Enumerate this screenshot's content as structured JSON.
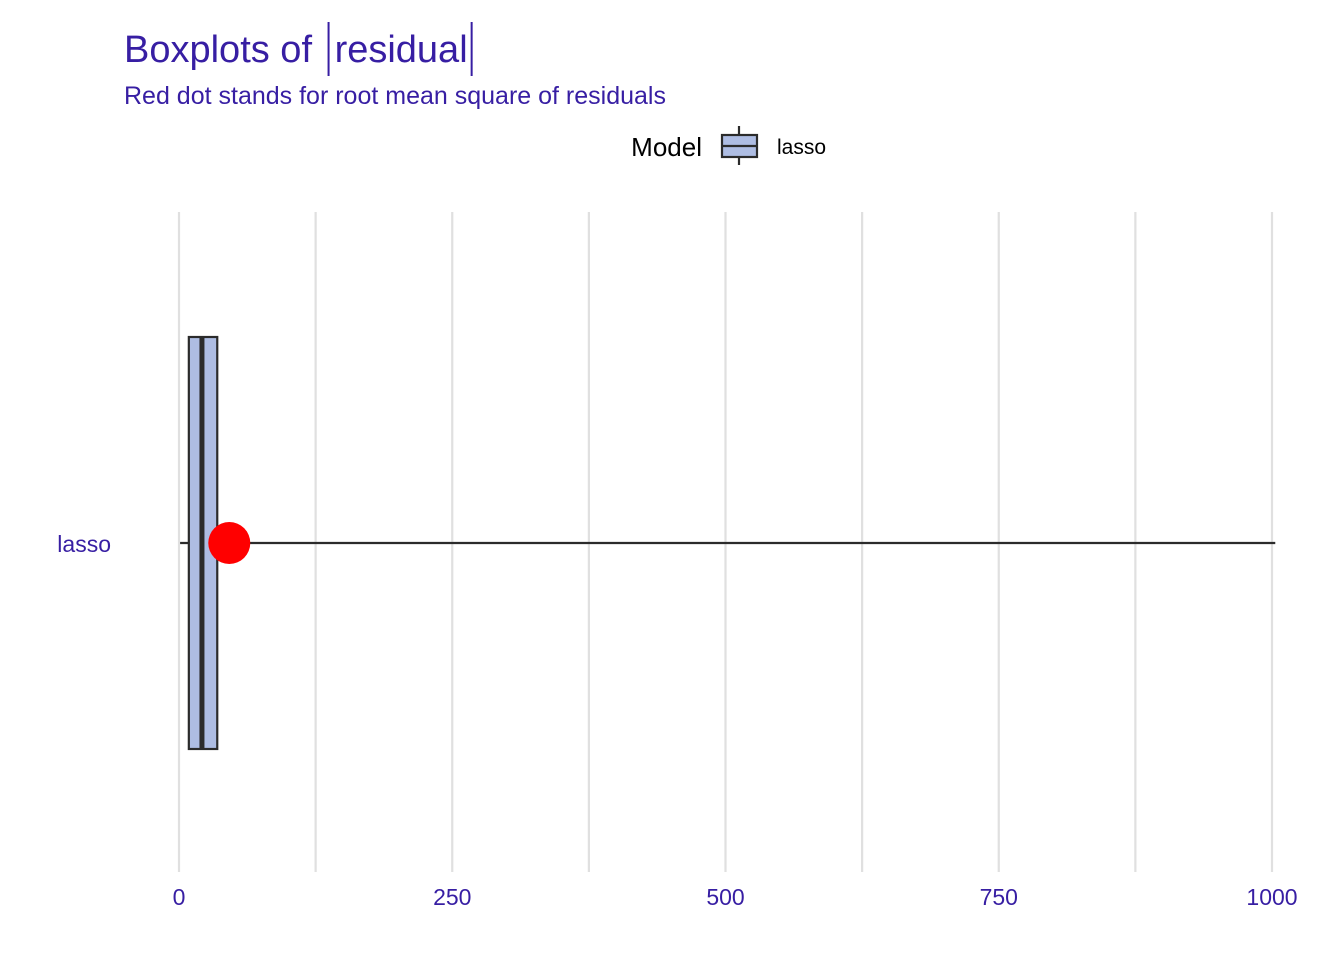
{
  "chart_data": {
    "type": "boxplot",
    "title_prefix": "Boxplots of ",
    "title_quantity": "residual",
    "subtitle": "Red dot stands for root mean square of residuals",
    "legend": {
      "title": "Model",
      "position": "top",
      "entries": [
        "lasso"
      ]
    },
    "x_ticks": [
      0,
      250,
      500,
      750,
      1000
    ],
    "x_tick_labels": [
      "0",
      "250",
      "500",
      "750",
      "1000"
    ],
    "xlim": [
      0,
      1000
    ],
    "grid": true,
    "series": [
      {
        "name": "lasso",
        "category": "lasso",
        "whisker_low": 1,
        "q1": 9,
        "median": 21,
        "q3": 35,
        "whisker_high": 1003,
        "rmse": 46
      }
    ],
    "colors": {
      "text": "#371ea3",
      "box_fill": "#aebde3",
      "box_stroke": "#2b2b2b",
      "rmse_dot": "#ff0000",
      "grid": "#e0e0e0"
    }
  }
}
